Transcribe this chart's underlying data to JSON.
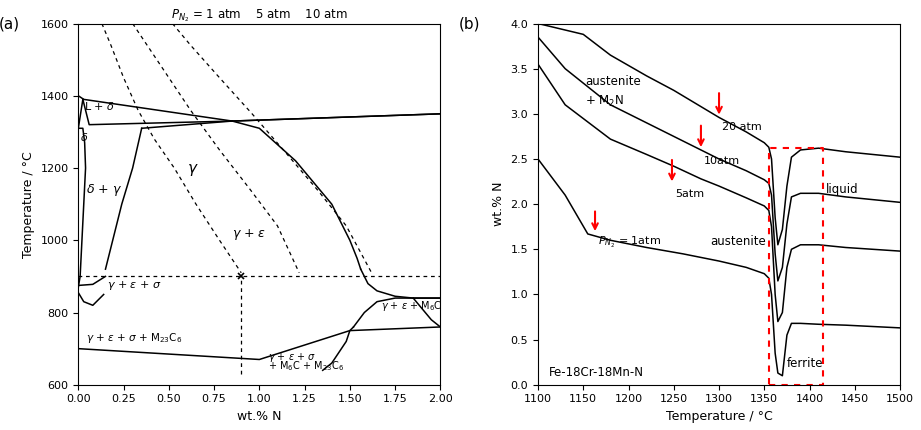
{
  "fig_width": 9.21,
  "fig_height": 4.3,
  "panel_a": {
    "xlabel": "wt.% N",
    "ylabel": "Temperature / °C",
    "xlim": [
      0,
      2.0
    ],
    "ylim": [
      600,
      1600
    ],
    "panel_label": "(a)"
  },
  "panel_b": {
    "xlabel": "Temperature / °C",
    "ylabel": "wt.% N",
    "xlim": [
      1100,
      1500
    ],
    "ylim": [
      0,
      4.0
    ],
    "panel_label": "(b)",
    "composition_label": "Fe-18Cr-18Mn-N"
  }
}
